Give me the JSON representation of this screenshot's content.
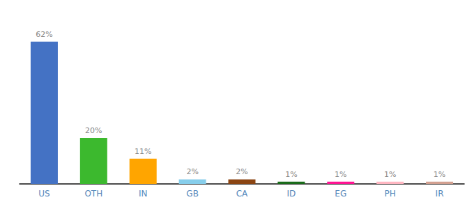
{
  "chart_data": {
    "type": "bar",
    "categories": [
      "US",
      "OTH",
      "IN",
      "GB",
      "CA",
      "ID",
      "EG",
      "PH",
      "IR"
    ],
    "values": [
      62,
      20,
      11,
      2,
      2,
      1,
      1,
      1,
      1
    ],
    "value_labels": [
      "62%",
      "20%",
      "11%",
      "2%",
      "2%",
      "1%",
      "1%",
      "1%",
      "1%"
    ],
    "colors": [
      "#4472C4",
      "#3CB92E",
      "#FFA500",
      "#87CEEB",
      "#8B4513",
      "#1A6B1A",
      "#FF1493",
      "#FFB6C1",
      "#D2A090"
    ],
    "ylim": [
      0,
      68
    ],
    "data_labels": true,
    "tick_labels": "x",
    "grid": false
  }
}
